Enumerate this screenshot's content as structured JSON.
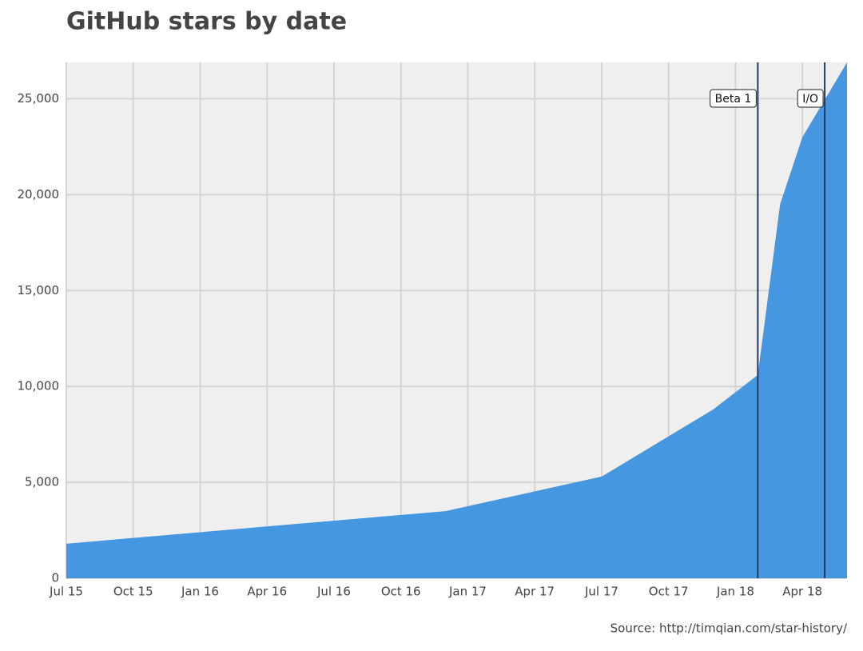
{
  "chart_data": {
    "type": "area",
    "title": "GitHub stars by date",
    "source": "Source: http://timqian.com/star-history/",
    "x": [
      "2015-07",
      "2016-12",
      "2017-07",
      "2017-12",
      "2018-02",
      "2018-03",
      "2018-04",
      "2018-06"
    ],
    "series": [
      {
        "name": "stars",
        "color": "#4497e0",
        "values": [
          1800,
          3500,
          5300,
          8800,
          10600,
          19500,
          23000,
          26900
        ]
      }
    ],
    "xlim": [
      "2015-07",
      "2018-06"
    ],
    "xticks": [
      {
        "value": "2015-07",
        "label": "Jul 15"
      },
      {
        "value": "2015-10",
        "label": "Oct 15"
      },
      {
        "value": "2016-01",
        "label": "Jan 16"
      },
      {
        "value": "2016-04",
        "label": "Apr 16"
      },
      {
        "value": "2016-07",
        "label": "Jul 16"
      },
      {
        "value": "2016-10",
        "label": "Oct 16"
      },
      {
        "value": "2017-01",
        "label": "Jan 17"
      },
      {
        "value": "2017-04",
        "label": "Apr 17"
      },
      {
        "value": "2017-07",
        "label": "Jul 17"
      },
      {
        "value": "2017-10",
        "label": "Oct 17"
      },
      {
        "value": "2018-01",
        "label": "Jan 18"
      },
      {
        "value": "2018-04",
        "label": "Apr 18"
      }
    ],
    "ylim": [
      0,
      26900
    ],
    "yticks": [
      0,
      {
        "value": 5000,
        "label": "5,000"
      },
      {
        "value": 10000,
        "label": "10,000"
      },
      {
        "value": 15000,
        "label": "15,000"
      },
      {
        "value": 20000,
        "label": "20,000"
      },
      {
        "value": 25000,
        "label": "25,000"
      }
    ],
    "grid": true,
    "annotations": [
      {
        "label": "Beta 1",
        "x": "2018-02"
      },
      {
        "label": "I/O",
        "x": "2018-05"
      }
    ]
  }
}
